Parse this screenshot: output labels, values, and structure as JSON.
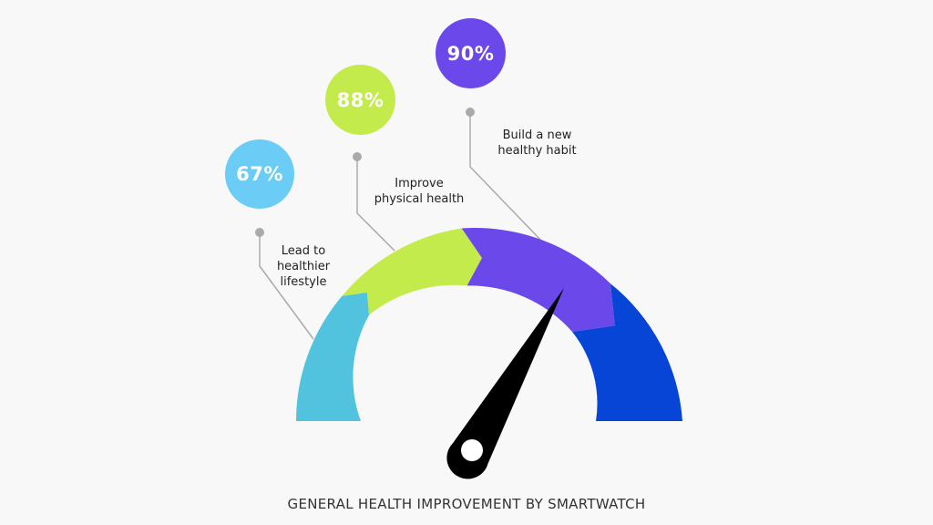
{
  "chart_data": {
    "type": "gauge",
    "title": "GENERAL HEALTH IMPROVEMENT BY SMARTWATCH",
    "categories": [
      "Lead to healthier lifestyle",
      "Improve physical health",
      "Build a new healthy habit"
    ],
    "values": [
      67,
      88,
      90
    ],
    "value_labels": [
      "67%",
      "88%",
      "90%"
    ],
    "colors": {
      "segment_1": "#52c3df",
      "segment_2": "#c3eb4b",
      "segment_3": "#6b48ea",
      "segment_4": "#0645d6",
      "bubble_1": "#6bcdf5",
      "bubble_2": "#c3eb4b",
      "bubble_3": "#6b48ea",
      "needle": "#000000",
      "leader_line": "#aaaaaa"
    }
  },
  "callouts": [
    {
      "value": "67%",
      "text": "Lead to\nhealthier\nlifestyle"
    },
    {
      "value": "88%",
      "text": "Improve\nphysical health"
    },
    {
      "value": "90%",
      "text": "Build a new\nhealthy habit"
    }
  ]
}
